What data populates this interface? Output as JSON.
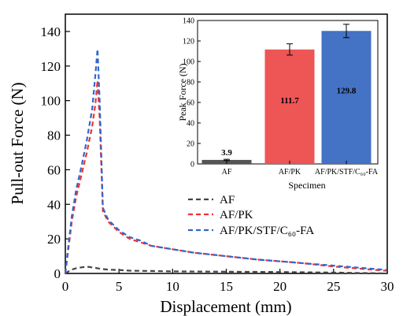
{
  "chart_data": [
    {
      "type": "line",
      "xlabel": "Displacement (mm)",
      "ylabel": "Pull-out Force (N)",
      "xlim": [
        0,
        30
      ],
      "ylim": [
        0,
        150
      ],
      "xticks": [
        "0",
        "5",
        "10",
        "15",
        "20",
        "25",
        "30"
      ],
      "yticks": [
        "0",
        "20",
        "40",
        "60",
        "80",
        "100",
        "120",
        "140"
      ],
      "line_style": "dashed",
      "legend_placement": "center-right",
      "series": [
        {
          "name": "AF",
          "color": "#444444",
          "x": [
            0,
            0.5,
            1,
            1.5,
            2,
            2.5,
            3,
            3.5,
            4,
            5,
            6,
            8,
            10,
            15,
            20,
            25,
            30
          ],
          "y": [
            0,
            2,
            3,
            3.5,
            3.9,
            3.5,
            3,
            2.5,
            2.2,
            2,
            1.6,
            1.4,
            1.2,
            1,
            0.8,
            0.5,
            0
          ]
        },
        {
          "name": "AF/PK",
          "color": "#ee3333",
          "x": [
            0,
            0.3,
            0.6,
            1,
            1.5,
            2,
            2.5,
            2.8,
            3.0,
            3.2,
            3.5,
            4,
            5,
            6,
            7,
            8,
            10,
            12,
            15,
            18,
            20,
            22,
            25,
            28,
            30
          ],
          "y": [
            0,
            15,
            30,
            44,
            57,
            70,
            85,
            98,
            111.7,
            90,
            36,
            30,
            24,
            20,
            18,
            16,
            14,
            12,
            10,
            8,
            7,
            6,
            4,
            2.5,
            1.5
          ]
        },
        {
          "name": "AF/PK/STF/C₆₀-FA",
          "color": "#3366cc",
          "x": [
            0,
            0.3,
            0.6,
            1,
            1.5,
            2,
            2.5,
            2.8,
            3.0,
            3.2,
            3.5,
            4,
            5,
            6,
            7,
            8,
            10,
            12,
            15,
            18,
            20,
            22,
            25,
            28,
            30
          ],
          "y": [
            0,
            17,
            33,
            48,
            62,
            77,
            95,
            115,
            129.8,
            100,
            38,
            31,
            25,
            21,
            19,
            16,
            14,
            12,
            10,
            8,
            7,
            6,
            4.5,
            3,
            2
          ]
        }
      ]
    },
    {
      "type": "bar",
      "xlabel": "Specimen",
      "ylabel": "Peak Force (N)",
      "ylim": [
        0,
        140
      ],
      "yticks": [
        "0",
        "20",
        "40",
        "60",
        "80",
        "100",
        "120",
        "140"
      ],
      "categories": [
        "AF",
        "AF/PK",
        "AF/PK/STF/C₆₀-FA"
      ],
      "values": [
        3.9,
        111.7,
        129.8
      ],
      "value_labels": [
        "3.9",
        "111.7",
        "129.8"
      ],
      "errors": [
        0.6,
        5.5,
        6.5
      ],
      "colors": [
        "#555555",
        "#ee5555",
        "#4472c4"
      ]
    }
  ]
}
